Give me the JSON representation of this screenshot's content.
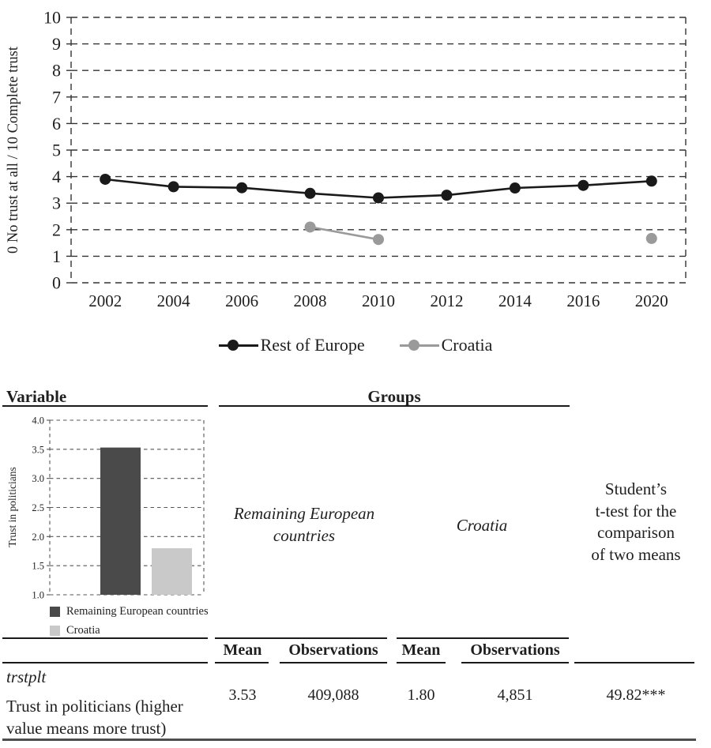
{
  "chart_data": [
    {
      "type": "line",
      "title": "",
      "ylabel": "0 No trust at all / 10 Complete trust",
      "x": [
        "2002",
        "2004",
        "2006",
        "2008",
        "2010",
        "2012",
        "2014",
        "2016",
        "2020"
      ],
      "series": [
        {
          "name": "Rest of Europe",
          "color": "#1a1a1a",
          "values": [
            3.9,
            3.62,
            3.58,
            3.37,
            3.2,
            3.3,
            3.57,
            3.67,
            3.83
          ]
        },
        {
          "name": "Croatia",
          "color": "#9a9a9a",
          "values": [
            null,
            null,
            null,
            2.1,
            1.63,
            null,
            null,
            null,
            1.67
          ]
        }
      ],
      "ylim": [
        0,
        10
      ],
      "yticks": [
        0,
        1,
        2,
        3,
        4,
        5,
        6,
        7,
        8,
        9,
        10
      ],
      "grid": "dashed-horizontal",
      "legend_position": "bottom"
    },
    {
      "type": "bar",
      "categories": [
        "Remaining European countries",
        "Croatia"
      ],
      "values": [
        3.53,
        1.8
      ],
      "colors": [
        "#4a4a4a",
        "#c9c9c9"
      ],
      "title": "",
      "xlabel": "",
      "ylabel": "Trust in politicians",
      "ylim": [
        1.0,
        4.0
      ],
      "yticks": [
        1.0,
        1.5,
        2.0,
        2.5,
        3.0,
        3.5,
        4.0
      ],
      "grid": "dashed-horizontal",
      "legend_position": "bottom"
    }
  ],
  "table": {
    "variable_header": "Variable",
    "groups_header": "Groups",
    "group1_label": "Remaining European\ncountries",
    "group2_label": "Croatia",
    "ttest_label": "Student’s\nt-test for the\ncomparison\nof two means",
    "subheaders": [
      "Mean",
      "Observations",
      "Mean",
      "Observations"
    ],
    "row": {
      "code": "trstplt",
      "label": "Trust in politicians (higher\nvalue means more trust)",
      "group1_mean": "3.53",
      "group1_obs": "409,088",
      "group2_mean": "1.80",
      "group2_obs": "4,851",
      "ttest": "49.82***"
    }
  }
}
